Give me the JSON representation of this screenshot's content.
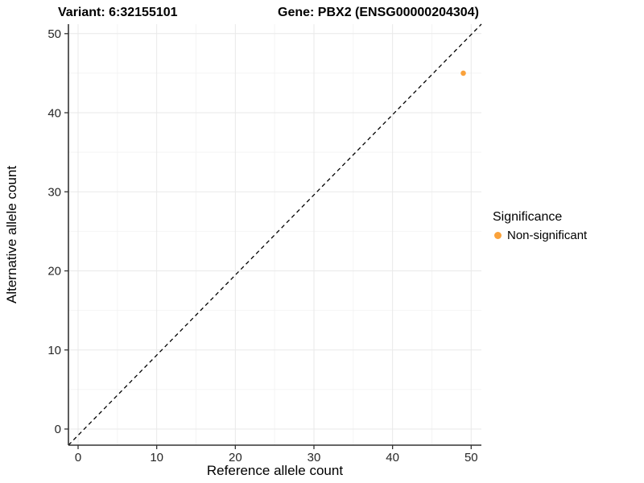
{
  "colors": {
    "background": "#FFFFFF",
    "axis_line": "#333333",
    "tick_text": "#262626",
    "grid_major": "#E9E9E9",
    "grid_minor": "#F4F4F4",
    "non_significant": "#FAA23B"
  },
  "chart_data": {
    "type": "scatter",
    "titles": {
      "left": "Variant: 6:32155101",
      "right": "Gene: PBX2 (ENSG00000204304)"
    },
    "xlabel": "Reference allele count",
    "ylabel": "Alternative allele count",
    "xlim": [
      -1.23,
      51.3
    ],
    "ylim": [
      -2.04,
      51.2
    ],
    "x_ticks": [
      0,
      10,
      20,
      30,
      40,
      50
    ],
    "x_minor_ticks": [
      5,
      15,
      25,
      35,
      45
    ],
    "y_ticks": [
      0,
      10,
      20,
      30,
      40,
      50
    ],
    "y_minor_ticks": [
      5,
      15,
      25,
      35,
      45
    ],
    "grid": "major+minor",
    "identity_line": {
      "equation": "y = x",
      "style": "dashed",
      "color": "#000000"
    },
    "series": [
      {
        "name": "Non-significant",
        "color": "#FAA23B",
        "marker": "circle",
        "points": [
          {
            "x": 49,
            "y": 45
          }
        ]
      }
    ],
    "legend": {
      "title": "Significance",
      "position": "right",
      "items": [
        {
          "label": "Non-significant",
          "color": "#FAA23B"
        }
      ]
    }
  }
}
